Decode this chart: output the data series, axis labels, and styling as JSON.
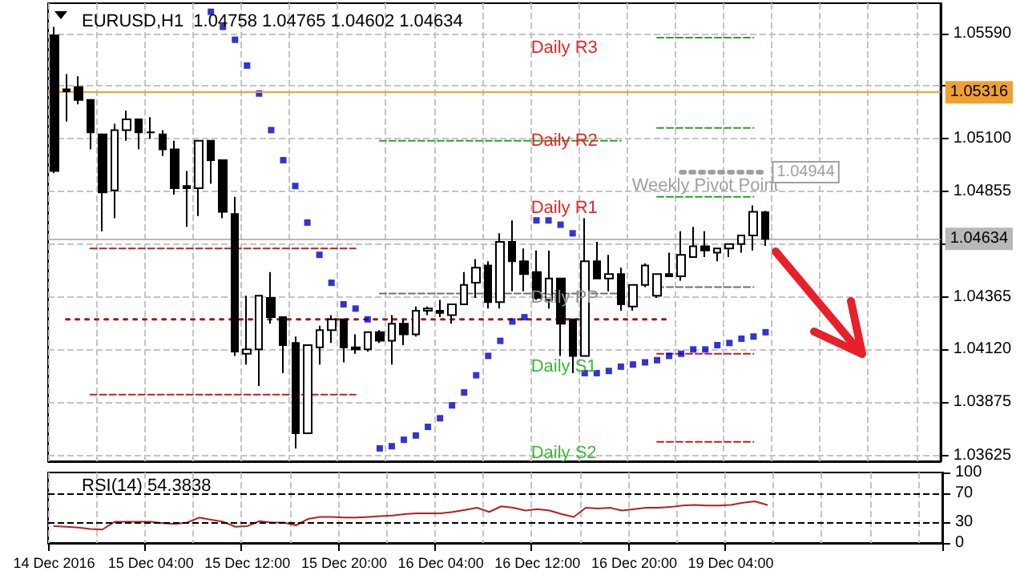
{
  "chart_data": [
    {
      "type": "candlestick",
      "title": "EURUSD,H1  1.04758 1.04765 1.04602 1.04634",
      "categories": [
        null,
        null,
        null,
        null,
        null,
        null,
        null,
        null,
        null,
        null,
        null,
        null,
        null,
        null,
        null,
        null,
        null,
        null,
        null,
        null,
        null,
        null,
        null,
        null,
        null,
        null,
        null,
        null,
        null,
        null,
        null,
        null,
        null,
        null,
        null,
        null,
        null,
        null,
        null,
        null,
        null,
        null,
        null,
        null,
        null,
        null,
        null,
        null,
        null,
        null,
        null,
        null,
        null,
        null,
        null,
        null,
        null,
        null,
        null,
        null,
        null,
        null,
        null,
        null,
        null,
        null,
        null,
        null,
        null,
        null,
        null,
        null,
        null,
        null
      ],
      "ohlc": [
        [
          1.0558,
          1.0562,
          1.0494,
          1.0495
        ],
        [
          1.0533,
          1.054,
          1.0518,
          1.0532
        ],
        [
          1.0534,
          1.0539,
          1.0526,
          1.0528
        ],
        [
          1.0528,
          1.0528,
          1.0505,
          1.0513
        ],
        [
          1.0512,
          1.0512,
          1.0467,
          1.0485
        ],
        [
          1.0486,
          1.0517,
          1.0473,
          1.0514
        ],
        [
          1.0514,
          1.0523,
          1.0509,
          1.0519
        ],
        [
          1.0519,
          1.0519,
          1.0505,
          1.0513
        ],
        [
          1.0513,
          1.052,
          1.051,
          1.0513
        ],
        [
          1.0512,
          1.0514,
          1.0502,
          1.0505
        ],
        [
          1.0505,
          1.0509,
          1.0484,
          1.0487
        ],
        [
          1.0488,
          1.0495,
          1.0469,
          1.0487
        ],
        [
          1.0487,
          1.0509,
          1.0474,
          1.0509
        ],
        [
          1.0509,
          1.0509,
          1.0489,
          1.05
        ],
        [
          1.05,
          1.05,
          1.0473,
          1.0476
        ],
        [
          1.0475,
          1.0483,
          1.0409,
          1.0411
        ],
        [
          1.041,
          1.0437,
          1.0405,
          1.0412
        ],
        [
          1.0412,
          1.0437,
          1.0395,
          1.0437
        ],
        [
          1.0436,
          1.0448,
          1.0424,
          1.0427
        ],
        [
          1.0427,
          1.0427,
          1.0401,
          1.0414
        ],
        [
          1.0415,
          1.0418,
          1.0366,
          1.0373
        ],
        [
          1.0373,
          1.0414,
          1.0373,
          1.0414
        ],
        [
          1.0413,
          1.0423,
          1.0405,
          1.0421
        ],
        [
          1.0421,
          1.0428,
          1.0415,
          1.0426
        ],
        [
          1.0426,
          1.0426,
          1.0406,
          1.0413
        ],
        [
          1.0413,
          1.0419,
          1.041,
          1.0412
        ],
        [
          1.0412,
          1.042,
          1.0411,
          1.042
        ],
        [
          1.042,
          1.0421,
          1.0415,
          1.0416
        ],
        [
          1.0416,
          1.0428,
          1.0405,
          1.0424
        ],
        [
          1.0424,
          1.0426,
          1.0414,
          1.0419
        ],
        [
          1.0419,
          1.0432,
          1.0418,
          1.043
        ],
        [
          1.043,
          1.0432,
          1.0428,
          1.0431
        ],
        [
          1.043,
          1.0435,
          1.0427,
          1.0429
        ],
        [
          1.0428,
          1.0433,
          1.0424,
          1.0433
        ],
        [
          1.0433,
          1.0448,
          1.0433,
          1.0442
        ],
        [
          1.0443,
          1.0454,
          1.0436,
          1.045
        ],
        [
          1.0451,
          1.0453,
          1.0431,
          1.0434
        ],
        [
          1.0434,
          1.0466,
          1.0431,
          1.0462
        ],
        [
          1.0462,
          1.0472,
          1.0439,
          1.0453
        ],
        [
          1.0453,
          1.0459,
          1.0439,
          1.0447
        ],
        [
          1.0448,
          1.0458,
          1.0435,
          1.0436
        ],
        [
          1.0435,
          1.0458,
          1.0431,
          1.0445
        ],
        [
          1.0445,
          1.0445,
          1.0409,
          1.0424
        ],
        [
          1.0426,
          1.0426,
          1.0401,
          1.0409
        ],
        [
          1.0409,
          1.0473,
          1.0409,
          1.0453
        ],
        [
          1.0453,
          1.0462,
          1.0445,
          1.0445
        ],
        [
          1.0445,
          1.0456,
          1.0439,
          1.0447
        ],
        [
          1.0447,
          1.045,
          1.043,
          1.0433
        ],
        [
          1.0432,
          1.0442,
          1.043,
          1.0442
        ],
        [
          1.0442,
          1.0452,
          1.0441,
          1.0451
        ],
        [
          1.0437,
          1.0447,
          1.0436,
          1.0447
        ],
        [
          1.0447,
          1.0457,
          1.0446,
          1.0446
        ],
        [
          1.0446,
          1.0467,
          1.0444,
          1.0456
        ],
        [
          1.0455,
          1.0469,
          1.0455,
          1.046
        ],
        [
          1.046,
          1.0467,
          1.0455,
          1.0458
        ],
        [
          1.0457,
          1.0459,
          1.0453,
          1.0459
        ],
        [
          1.0459,
          1.0461,
          1.0455,
          1.0461
        ],
        [
          1.0461,
          1.0465,
          1.0457,
          1.0465
        ],
        [
          1.0465,
          1.0479,
          1.0458,
          1.0476
        ],
        [
          1.04758,
          1.04765,
          1.04602,
          1.04634
        ],
        null,
        null,
        null,
        null,
        null,
        null,
        null,
        null,
        null,
        null,
        null,
        null,
        null,
        null
      ],
      "series": [
        {
          "type": "scatter",
          "marker": "square",
          "color": "#0000c8",
          "values": [
            null,
            null,
            null,
            null,
            null,
            null,
            null,
            null,
            null,
            null,
            null,
            null,
            null,
            1.0569,
            1.0562,
            1.0556,
            1.0544,
            1.0531,
            1.0514,
            1.05,
            1.0488,
            1.0471,
            1.0456,
            1.0443,
            1.0433,
            1.0431,
            1.0426,
            1.0366,
            1.0367,
            1.037,
            1.0372,
            1.0376,
            1.038,
            1.0386,
            1.0392,
            1.04,
            1.0409,
            1.0416,
            1.0425,
            1.0427,
            1.0472,
            1.0472,
            1.047,
            1.0466,
            1.0401,
            1.0401,
            1.0402,
            1.0404,
            1.0405,
            1.0406,
            1.0407,
            1.0409,
            1.041,
            1.0412,
            1.0412,
            1.0414,
            1.0415,
            1.0417,
            1.0418,
            1.042,
            null,
            null,
            null,
            null,
            null,
            null,
            null,
            null,
            null,
            null,
            null,
            null,
            null,
            null
          ]
        },
        {
          "type": "line",
          "line_style": "dashed",
          "color": "#2e9e2e",
          "values": [
            null,
            null,
            null,
            null,
            null,
            null,
            null,
            null,
            null,
            null,
            null,
            null,
            null,
            null,
            null,
            null,
            null,
            null,
            null,
            null,
            null,
            null,
            null,
            null,
            null,
            null,
            null,
            1.0509,
            1.0509,
            1.0509,
            1.0509,
            1.0509,
            1.0509,
            1.0509,
            1.0509,
            1.0509,
            1.0509,
            1.0509,
            1.0509,
            1.0509,
            1.0509,
            1.0509,
            1.0509,
            1.0509,
            1.0509,
            1.0509,
            1.0509,
            1.0509,
            null,
            null,
            1.0515,
            1.0515,
            1.0515,
            1.0515,
            1.0515,
            1.0515,
            1.0515,
            1.0515,
            1.0515,
            null,
            null,
            null,
            null,
            null,
            null,
            null,
            null,
            null,
            null,
            null,
            null,
            null,
            null,
            null
          ]
        },
        {
          "type": "line",
          "line_style": "dashed",
          "color": "#2e9e2e",
          "values": [
            null,
            null,
            null,
            null,
            null,
            null,
            null,
            null,
            null,
            null,
            null,
            null,
            null,
            null,
            null,
            null,
            null,
            null,
            null,
            null,
            null,
            null,
            null,
            null,
            null,
            null,
            null,
            null,
            null,
            null,
            null,
            null,
            null,
            null,
            null,
            null,
            null,
            null,
            null,
            null,
            null,
            null,
            null,
            null,
            null,
            null,
            null,
            null,
            null,
            null,
            1.0557,
            1.0557,
            1.0557,
            1.0557,
            1.0557,
            1.0557,
            1.0557,
            1.0557,
            1.0557,
            null,
            null,
            null,
            null,
            null,
            null,
            null,
            null,
            null,
            null,
            null,
            null,
            null,
            null,
            null
          ]
        },
        {
          "type": "line",
          "line_style": "dashed",
          "color": "#2e9e2e",
          "values": [
            null,
            null,
            null,
            null,
            null,
            null,
            null,
            null,
            null,
            null,
            null,
            null,
            null,
            null,
            null,
            null,
            null,
            null,
            null,
            null,
            null,
            null,
            null,
            null,
            null,
            null,
            null,
            null,
            null,
            null,
            null,
            null,
            null,
            null,
            null,
            null,
            null,
            null,
            null,
            null,
            null,
            null,
            null,
            null,
            null,
            null,
            null,
            null,
            null,
            null,
            1.0483,
            1.0483,
            1.0483,
            1.0483,
            1.0483,
            1.0483,
            1.0483,
            1.0483,
            1.0483,
            null,
            null,
            null,
            null,
            null,
            null,
            null,
            null,
            null,
            null,
            null,
            null,
            null,
            null,
            null
          ]
        },
        {
          "type": "line",
          "line_style": "dashed",
          "color": "#707070",
          "values": [
            null,
            null,
            null,
            null,
            null,
            null,
            null,
            null,
            null,
            null,
            null,
            null,
            null,
            null,
            null,
            null,
            null,
            null,
            null,
            null,
            null,
            null,
            null,
            null,
            null,
            null,
            null,
            1.0438,
            1.0438,
            1.0438,
            1.0438,
            1.0438,
            1.0438,
            1.0438,
            1.0438,
            1.0438,
            1.0438,
            1.0438,
            1.0438,
            1.0438,
            1.0438,
            1.0438,
            1.0438,
            1.0438,
            1.0438,
            1.0438,
            1.0438,
            1.0438,
            null,
            null,
            1.0441,
            1.0441,
            1.0441,
            1.0441,
            1.0441,
            1.0441,
            1.0441,
            1.0441,
            1.0441,
            null,
            null,
            null,
            null,
            null,
            null,
            null,
            null,
            null,
            null,
            null,
            null,
            null,
            null,
            null
          ]
        },
        {
          "type": "line",
          "line_style": "dashed",
          "color": "#c02020",
          "values": [
            null,
            null,
            null,
            1.0459,
            1.0459,
            1.0459,
            1.0459,
            1.0459,
            1.0459,
            1.0459,
            1.0459,
            1.0459,
            1.0459,
            1.0459,
            1.0459,
            1.0459,
            1.0459,
            1.0459,
            1.0459,
            1.0459,
            1.0459,
            1.0459,
            1.0459,
            1.0459,
            1.0459,
            1.0459,
            null,
            null,
            null,
            null,
            null,
            null,
            null,
            null,
            null,
            null,
            null,
            null,
            null,
            null,
            null,
            null,
            null,
            null,
            null,
            null,
            null,
            null,
            null,
            null,
            null,
            null,
            null,
            null,
            null,
            null,
            null,
            null,
            null,
            null,
            null,
            null,
            null,
            null,
            null,
            null,
            null,
            null,
            null,
            null,
            null,
            null,
            null,
            null
          ]
        },
        {
          "type": "line",
          "line_style": "dashed",
          "color": "#c02020",
          "values": [
            null,
            null,
            null,
            1.0391,
            1.0391,
            1.0391,
            1.0391,
            1.0391,
            1.0391,
            1.0391,
            1.0391,
            1.0391,
            1.0391,
            1.0391,
            1.0391,
            1.0391,
            1.0391,
            1.0391,
            1.0391,
            1.0391,
            1.0391,
            1.0391,
            1.0391,
            1.0391,
            1.0391,
            1.0391,
            null,
            null,
            null,
            null,
            null,
            null,
            null,
            null,
            null,
            null,
            null,
            null,
            null,
            null,
            null,
            null,
            null,
            null,
            null,
            null,
            null,
            null,
            null,
            null,
            null,
            null,
            null,
            null,
            null,
            null,
            null,
            null,
            null,
            null,
            null,
            null,
            null,
            null,
            null,
            null,
            null,
            null,
            null,
            null,
            null,
            null,
            null,
            null
          ]
        },
        {
          "type": "line",
          "line_style": "dashed",
          "color": "#c02020",
          "values": [
            null,
            null,
            null,
            null,
            null,
            null,
            null,
            null,
            null,
            null,
            null,
            null,
            null,
            null,
            null,
            null,
            null,
            null,
            null,
            null,
            null,
            null,
            null,
            null,
            null,
            null,
            null,
            null,
            null,
            null,
            null,
            null,
            null,
            null,
            null,
            null,
            null,
            null,
            null,
            null,
            null,
            null,
            null,
            null,
            null,
            null,
            null,
            null,
            null,
            null,
            1.041,
            1.041,
            1.041,
            1.041,
            1.041,
            1.041,
            1.041,
            1.041,
            1.041,
            null,
            null,
            null,
            null,
            null,
            null,
            null,
            null,
            null,
            null,
            null,
            null,
            null,
            null,
            null
          ]
        },
        {
          "type": "line",
          "line_style": "dashed",
          "color": "#c02020",
          "values": [
            null,
            null,
            null,
            null,
            null,
            null,
            null,
            null,
            null,
            null,
            null,
            null,
            null,
            null,
            null,
            null,
            null,
            null,
            null,
            null,
            null,
            null,
            null,
            null,
            null,
            null,
            null,
            null,
            null,
            null,
            null,
            null,
            null,
            null,
            null,
            null,
            null,
            null,
            null,
            null,
            null,
            null,
            null,
            null,
            null,
            null,
            null,
            null,
            null,
            null,
            1.0369,
            1.0369,
            1.0369,
            1.0369,
            1.0369,
            1.0369,
            1.0369,
            1.0369,
            1.0369,
            null,
            null,
            null,
            null,
            null,
            null,
            null,
            null,
            null,
            null,
            null,
            null,
            null,
            null,
            null
          ]
        },
        {
          "type": "line",
          "line_style": "dotted",
          "color": "#a01818",
          "values": [
            null,
            1.0426,
            1.0426,
            1.0426,
            1.0426,
            1.0426,
            1.0426,
            1.0426,
            1.0426,
            1.0426,
            1.0426,
            1.0426,
            1.0426,
            1.0426,
            1.0426,
            1.0426,
            1.0426,
            1.0426,
            1.0426,
            1.0426,
            1.0426,
            1.0426,
            1.0426,
            1.0426,
            1.0426,
            1.0426,
            1.0426,
            1.0426,
            1.0426,
            1.0426,
            1.0426,
            1.0426,
            1.0426,
            1.0426,
            1.0426,
            1.0426,
            1.0426,
            1.0426,
            1.0426,
            1.0426,
            1.0426,
            1.0426,
            1.0426,
            1.0426,
            1.0426,
            1.0426,
            1.0426,
            1.0426,
            1.0426,
            1.0426,
            1.0426,
            1.0426,
            null,
            null,
            null,
            null,
            null,
            null,
            null,
            null,
            null,
            null,
            null,
            null,
            null,
            null,
            null,
            null,
            null,
            null,
            null,
            null,
            null,
            null
          ]
        },
        {
          "type": "line",
          "name": "Weekly Pivot Point",
          "line_style": "dotted",
          "color": "#a0a0a0",
          "values": [
            null,
            null,
            null,
            null,
            null,
            null,
            null,
            null,
            null,
            null,
            null,
            null,
            null,
            null,
            null,
            null,
            null,
            null,
            null,
            null,
            null,
            null,
            null,
            null,
            null,
            null,
            null,
            null,
            null,
            null,
            null,
            null,
            null,
            null,
            null,
            null,
            null,
            null,
            null,
            null,
            null,
            null,
            null,
            null,
            null,
            null,
            null,
            null,
            null,
            null,
            null,
            null,
            1.04944,
            1.04944,
            1.04944,
            1.04944,
            1.04944,
            1.04944,
            1.04944,
            1.04944,
            null,
            null,
            null,
            null,
            null,
            null,
            null,
            null,
            null,
            null,
            null,
            null,
            null,
            null
          ],
          "value_labels": [
            null,
            null,
            null,
            null,
            null,
            null,
            null,
            null,
            null,
            null,
            null,
            null,
            null,
            null,
            null,
            null,
            null,
            null,
            null,
            null,
            null,
            null,
            null,
            null,
            null,
            null,
            null,
            null,
            null,
            null,
            null,
            null,
            null,
            null,
            null,
            null,
            null,
            null,
            null,
            null,
            null,
            null,
            null,
            null,
            null,
            null,
            null,
            null,
            null,
            null,
            null,
            null,
            null,
            null,
            null,
            null,
            null,
            null,
            null,
            "1.04944",
            null,
            null,
            null,
            null,
            null,
            null,
            null,
            null,
            null,
            null,
            null,
            null,
            null,
            null
          ]
        }
      ],
      "ref_lines": [
        {
          "axis": "y",
          "value": 1.05316,
          "label": "1.05316",
          "color": "#f0a030"
        },
        {
          "axis": "y",
          "value": 1.04634,
          "label": "1.04634",
          "color": "#b8b8b8"
        }
      ],
      "annotations": [
        "Daily R3",
        "Daily R2",
        "Daily R1",
        "Daily PP",
        "Daily S1",
        "Daily S2"
      ],
      "ylim": [
        1.036,
        1.0573
      ],
      "yticks": [
        1.03625,
        1.03875,
        {
          "value": 1.0412,
          "label": "1.04120"
        },
        1.04365,
        {
          "value": 1.0461,
          "label": null
        },
        1.04855,
        {
          "value": 1.051,
          "label": "1.05100"
        },
        {
          "value": 1.05345,
          "label": null
        },
        {
          "value": 1.0559,
          "label": "1.05590"
        }
      ],
      "grid": true,
      "tick_labels": "y"
    },
    {
      "type": "line",
      "title": "RSI(14) 54.3838",
      "categories": [
        "14 Dec 2016",
        null,
        null,
        null,
        null,
        null,
        null,
        null,
        "15 Dec 04:00",
        null,
        null,
        null,
        null,
        null,
        null,
        null,
        "15 Dec 12:00",
        null,
        null,
        null,
        null,
        null,
        null,
        null,
        "15 Dec 20:00",
        null,
        null,
        null,
        null,
        null,
        null,
        null,
        "16 Dec 04:00",
        null,
        null,
        null,
        null,
        null,
        null,
        null,
        "16 Dec 12:00",
        null,
        null,
        null,
        null,
        null,
        null,
        null,
        "16 Dec 20:00",
        null,
        null,
        null,
        null,
        null,
        null,
        null,
        "19 Dec 04:00",
        null,
        null,
        null,
        null,
        null,
        null,
        null,
        null,
        null,
        null,
        null,
        null,
        null,
        null,
        null,
        null,
        null
      ],
      "color": "#b22222",
      "values": [
        24,
        23,
        22,
        20,
        19,
        30,
        30,
        30,
        30,
        28,
        27,
        29,
        36,
        33,
        30,
        23,
        24,
        31,
        29,
        29,
        25,
        34,
        37,
        37,
        36,
        36,
        37,
        38,
        39,
        41,
        42,
        42,
        42,
        44,
        47,
        50,
        44,
        52,
        50,
        46,
        48,
        46,
        41,
        37,
        50,
        49,
        50,
        46,
        48,
        50,
        50,
        51,
        53,
        54,
        53,
        53,
        54,
        57,
        59,
        54,
        null,
        null,
        null,
        null,
        null,
        null,
        null,
        null,
        null,
        null,
        null,
        null,
        null,
        null
      ],
      "ref_lines": [
        {
          "axis": "y",
          "value": 70,
          "color": "#000000",
          "line_style": "dashed"
        },
        {
          "axis": "y",
          "value": 30,
          "color": "#000000",
          "line_style": "dashed"
        }
      ],
      "ylim": [
        0,
        100
      ],
      "yticks": [
        0,
        30,
        70,
        100
      ],
      "grid": "x"
    }
  ]
}
